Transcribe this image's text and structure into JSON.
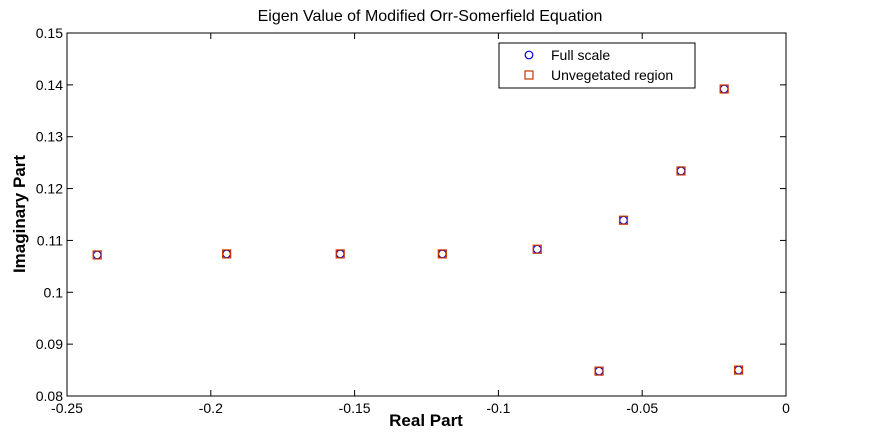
{
  "chart_data": {
    "type": "scatter",
    "title": "Eigen Value of Modified Orr-Somerfield Equation",
    "xlabel": "Real Part",
    "ylabel": "Imaginary Part",
    "xlim": [
      -0.25,
      0
    ],
    "ylim": [
      0.08,
      0.15
    ],
    "xticks": [
      -0.25,
      -0.2,
      -0.15,
      -0.1,
      -0.05,
      0
    ],
    "xtick_labels": [
      "-0.25",
      "-0.2",
      "-0.15",
      "-0.1",
      "-0.05",
      "0"
    ],
    "yticks": [
      0.08,
      0.09,
      0.1,
      0.11,
      0.12,
      0.13,
      0.14,
      0.15
    ],
    "ytick_labels": [
      "0.08",
      "0.09",
      "0.1",
      "0.11",
      "0.12",
      "0.13",
      "0.14",
      "0.15"
    ],
    "grid": false,
    "legend_position": "top-right",
    "series": [
      {
        "name": "Full scale",
        "marker": "circle",
        "color": "#0000cc",
        "x": [
          -0.2395,
          -0.1945,
          -0.155,
          -0.1195,
          -0.0865,
          -0.0565,
          -0.0365,
          -0.0215,
          -0.065,
          -0.0165
        ],
        "y": [
          0.1072,
          0.1074,
          0.1074,
          0.1074,
          0.1083,
          0.1139,
          0.1234,
          0.1392,
          0.0848,
          0.085
        ]
      },
      {
        "name": "Unvegetated region",
        "marker": "square",
        "color": "#cc3300",
        "x": [
          -0.2395,
          -0.1945,
          -0.155,
          -0.1195,
          -0.0865,
          -0.0565,
          -0.0365,
          -0.0215,
          -0.065,
          -0.0165
        ],
        "y": [
          0.1072,
          0.1074,
          0.1074,
          0.1074,
          0.1083,
          0.1139,
          0.1234,
          0.1392,
          0.0848,
          0.085
        ]
      }
    ]
  }
}
